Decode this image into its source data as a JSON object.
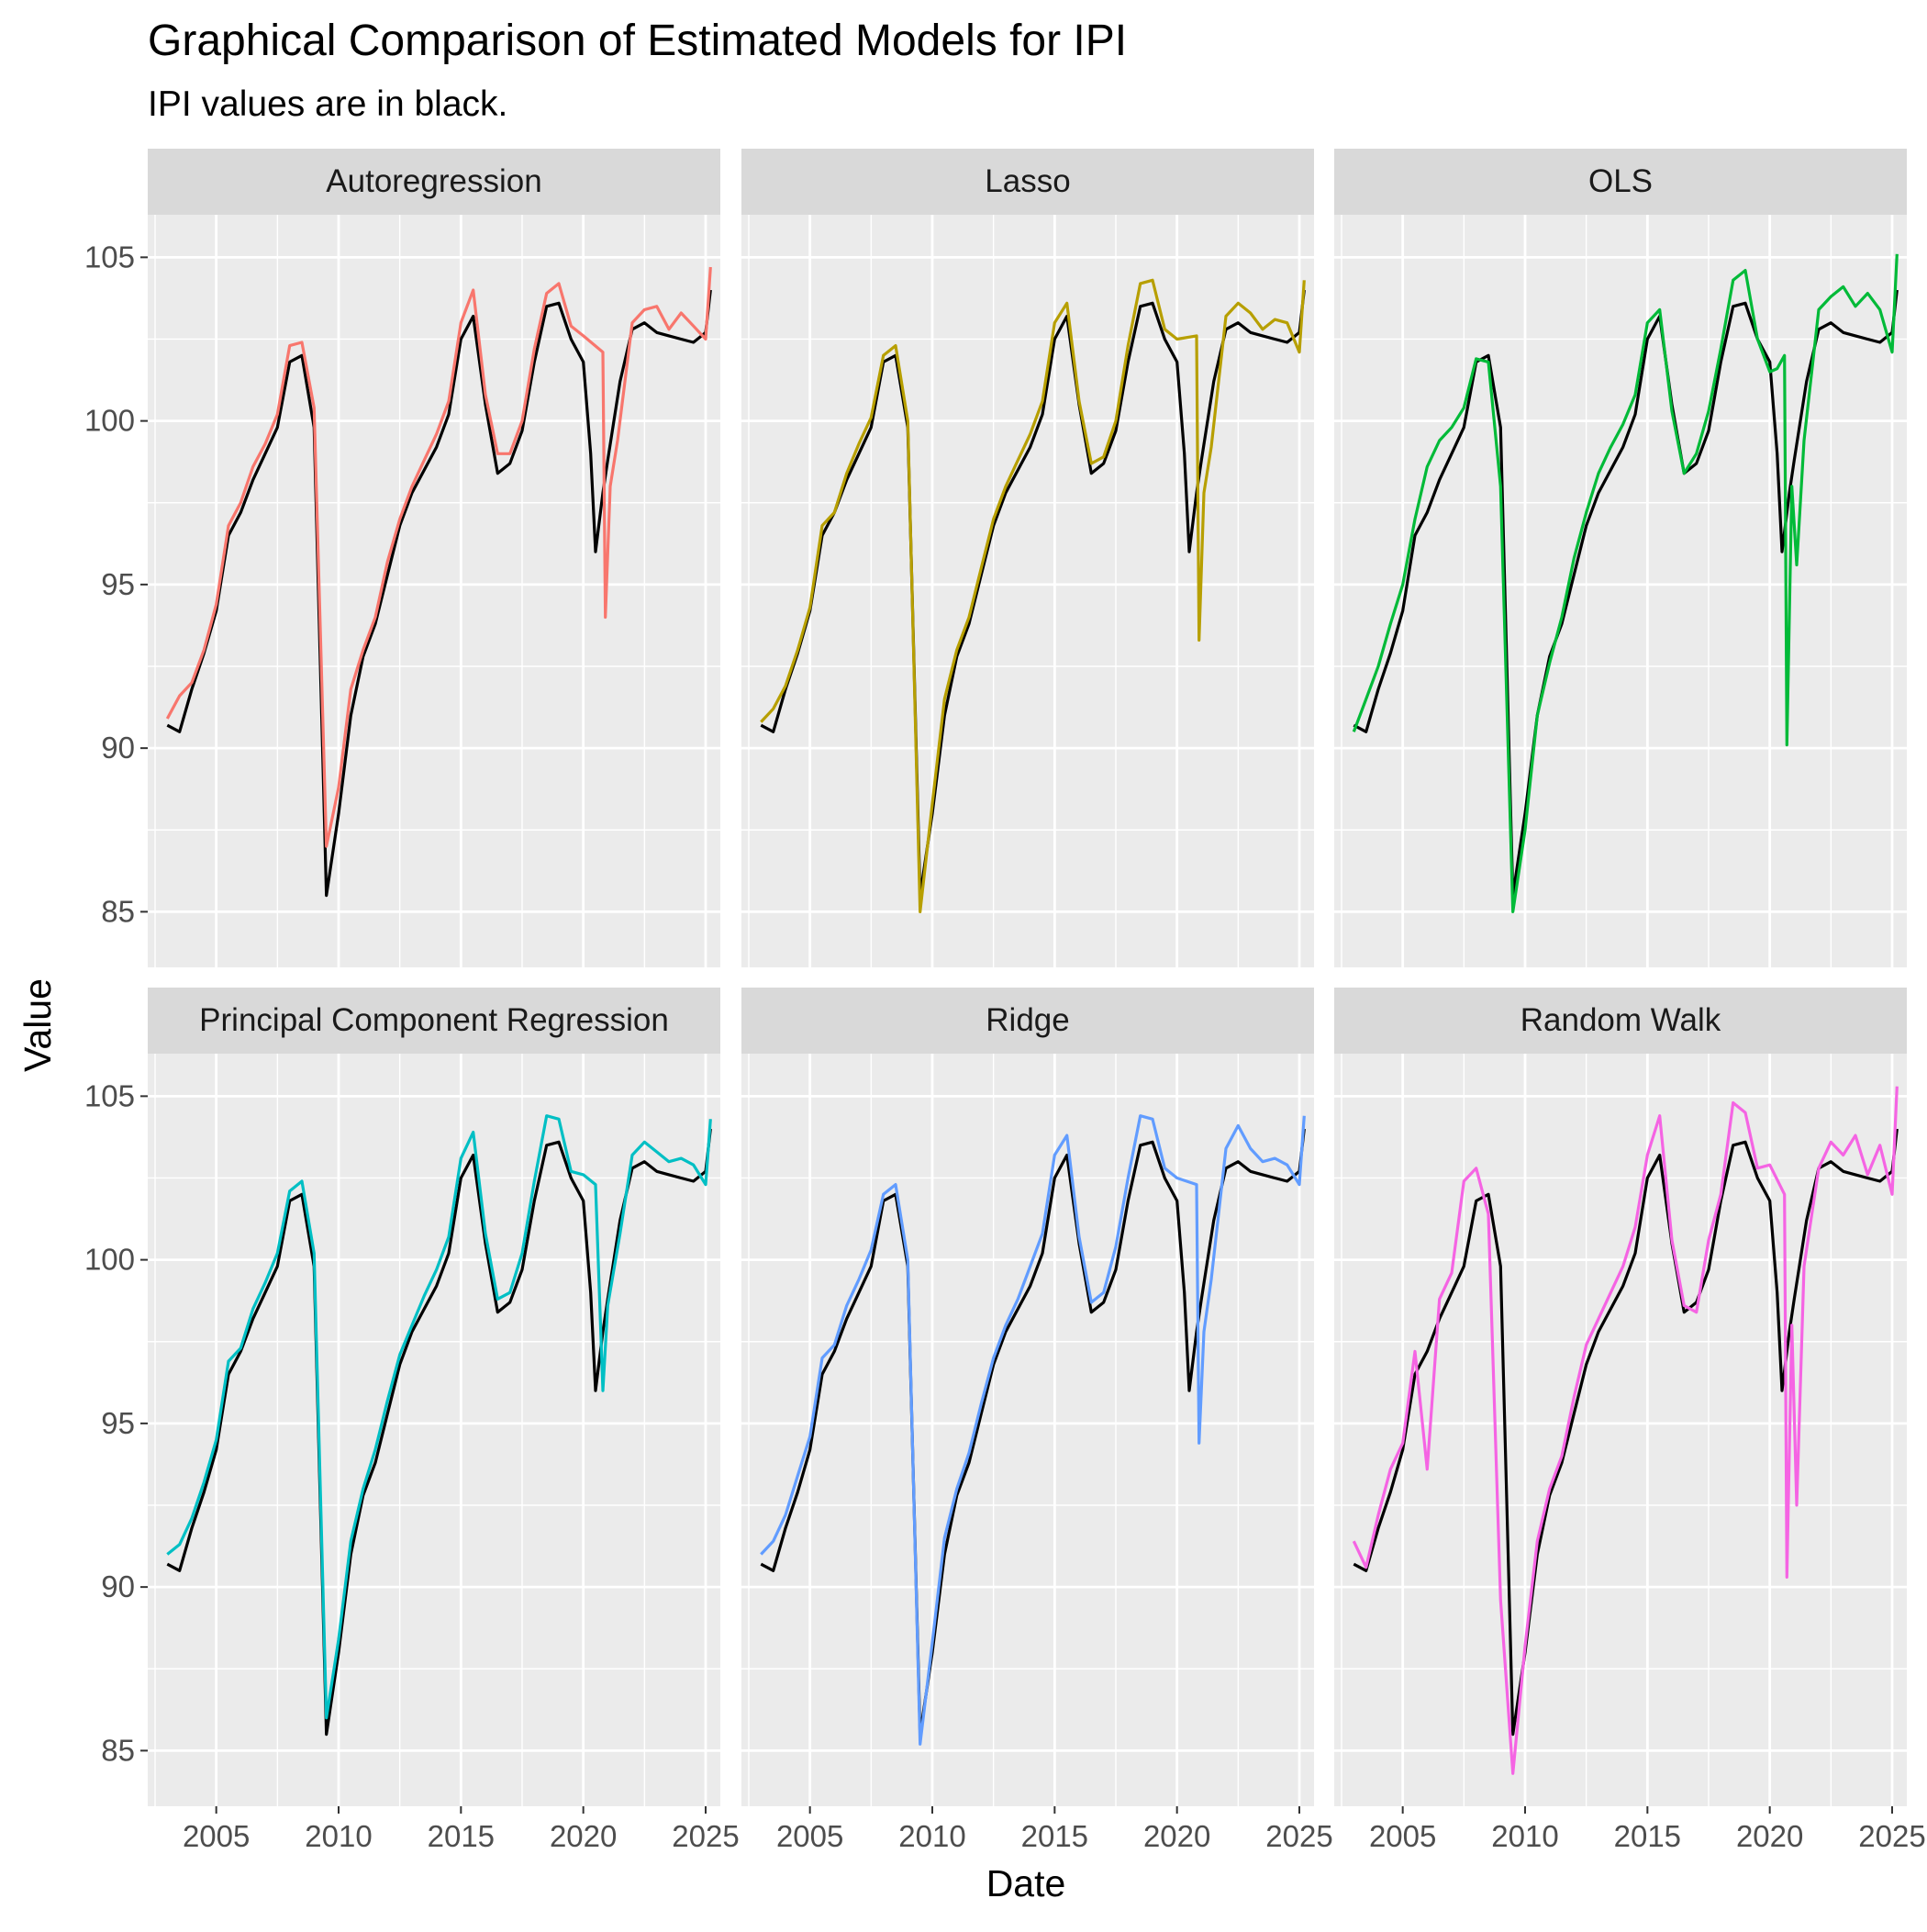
{
  "title": "Graphical Comparison of Estimated Models for IPI",
  "subtitle": "IPI values are in black.",
  "chart_data": {
    "type": "line",
    "title": "Graphical Comparison of Estimated Models for IPI",
    "subtitle": "IPI values are in black.",
    "xlabel": "Date",
    "ylabel": "Value",
    "xlim": [
      2002.2,
      2025.6
    ],
    "ylim": [
      83.3,
      106.3
    ],
    "x_ticks": [
      2005,
      2010,
      2015,
      2020,
      2025
    ],
    "x_tick_labels": [
      "2005",
      "2010",
      "2015",
      "2020",
      "2025"
    ],
    "y_ticks": [
      85,
      90,
      95,
      100,
      105
    ],
    "y_tick_labels": [
      "85",
      "90",
      "95",
      "100",
      "105"
    ],
    "grid": true,
    "legend": "none",
    "facet_layout": "2 rows x 3 columns",
    "actual_series": {
      "name": "IPI",
      "color": "#000000",
      "x": [
        2003.0,
        2003.5,
        2004.0,
        2004.5,
        2005.0,
        2005.5,
        2006.0,
        2006.5,
        2007.0,
        2007.5,
        2008.0,
        2008.5,
        2009.0,
        2009.5,
        2010.0,
        2010.5,
        2011.0,
        2011.5,
        2012.0,
        2012.5,
        2013.0,
        2013.5,
        2014.0,
        2014.5,
        2015.0,
        2015.5,
        2016.0,
        2016.5,
        2017.0,
        2017.5,
        2018.0,
        2018.5,
        2019.0,
        2019.5,
        2020.0,
        2020.3,
        2020.5,
        2020.8,
        2021.0,
        2021.5,
        2022.0,
        2022.5,
        2023.0,
        2023.5,
        2024.0,
        2024.5,
        2025.0,
        2025.2
      ],
      "y": [
        90.7,
        90.5,
        91.8,
        92.9,
        94.2,
        96.5,
        97.2,
        98.2,
        99.0,
        99.8,
        101.8,
        102.0,
        99.8,
        85.5,
        88.0,
        91.0,
        92.8,
        93.8,
        95.3,
        96.8,
        97.8,
        98.5,
        99.2,
        100.2,
        102.5,
        103.2,
        100.5,
        98.4,
        98.7,
        99.7,
        101.8,
        103.5,
        103.6,
        102.5,
        101.8,
        99.0,
        96.0,
        97.8,
        98.8,
        101.2,
        102.8,
        103.0,
        102.7,
        102.6,
        102.5,
        102.4,
        102.7,
        104.0
      ]
    },
    "series": [
      {
        "name": "Autoregression",
        "color": "#F8766D",
        "x": [
          2003.0,
          2003.5,
          2004.0,
          2004.5,
          2005.0,
          2005.5,
          2006.0,
          2006.5,
          2007.0,
          2007.5,
          2008.0,
          2008.5,
          2009.0,
          2009.5,
          2010.0,
          2010.5,
          2011.0,
          2011.5,
          2012.0,
          2012.5,
          2013.0,
          2013.5,
          2014.0,
          2014.5,
          2015.0,
          2015.5,
          2016.0,
          2016.5,
          2017.0,
          2017.5,
          2018.0,
          2018.5,
          2019.0,
          2019.5,
          2020.0,
          2020.8,
          2020.9,
          2021.1,
          2021.4,
          2022.0,
          2022.5,
          2023.0,
          2023.5,
          2024.0,
          2024.5,
          2025.0,
          2025.2
        ],
        "y": [
          90.9,
          91.6,
          92.0,
          93.0,
          94.4,
          96.8,
          97.5,
          98.6,
          99.3,
          100.2,
          102.3,
          102.4,
          100.4,
          87.0,
          88.8,
          91.8,
          93.0,
          94.0,
          95.7,
          97.0,
          98.0,
          98.8,
          99.6,
          100.6,
          103.0,
          104.0,
          100.8,
          99.0,
          99.0,
          100.0,
          102.2,
          103.9,
          104.2,
          102.9,
          102.6,
          102.1,
          94.0,
          98.0,
          99.4,
          103.0,
          103.4,
          103.5,
          102.8,
          103.3,
          102.9,
          102.5,
          104.7
        ]
      },
      {
        "name": "Lasso",
        "color": "#B79F00",
        "x": [
          2003.0,
          2003.5,
          2004.0,
          2004.5,
          2005.0,
          2005.5,
          2006.0,
          2006.5,
          2007.0,
          2007.5,
          2008.0,
          2008.5,
          2009.0,
          2009.5,
          2010.0,
          2010.5,
          2011.0,
          2011.5,
          2012.0,
          2012.5,
          2013.0,
          2013.5,
          2014.0,
          2014.5,
          2015.0,
          2015.5,
          2016.0,
          2016.5,
          2017.0,
          2017.5,
          2018.0,
          2018.5,
          2019.0,
          2019.5,
          2020.0,
          2020.8,
          2020.9,
          2021.1,
          2021.4,
          2022.0,
          2022.5,
          2023.0,
          2023.5,
          2024.0,
          2024.5,
          2025.0,
          2025.2
        ],
        "y": [
          90.8,
          91.2,
          91.9,
          93.0,
          94.3,
          96.8,
          97.2,
          98.4,
          99.3,
          100.1,
          102.0,
          102.3,
          100.0,
          85.0,
          88.3,
          91.5,
          93.0,
          94.0,
          95.5,
          97.0,
          98.0,
          98.8,
          99.6,
          100.6,
          103.0,
          103.6,
          100.6,
          98.7,
          98.9,
          100.0,
          102.3,
          104.2,
          104.3,
          102.8,
          102.5,
          102.6,
          93.3,
          97.8,
          99.2,
          103.2,
          103.6,
          103.3,
          102.8,
          103.1,
          103.0,
          102.1,
          104.3
        ]
      },
      {
        "name": "OLS",
        "color": "#00BA38",
        "x": [
          2003.0,
          2003.5,
          2004.0,
          2004.5,
          2005.0,
          2005.5,
          2006.0,
          2006.5,
          2007.0,
          2007.5,
          2008.0,
          2008.5,
          2009.0,
          2009.5,
          2010.0,
          2010.5,
          2011.0,
          2011.5,
          2012.0,
          2012.5,
          2013.0,
          2013.5,
          2014.0,
          2014.5,
          2015.0,
          2015.5,
          2016.0,
          2016.5,
          2017.0,
          2017.5,
          2018.0,
          2018.5,
          2019.0,
          2019.5,
          2020.0,
          2020.3,
          2020.6,
          2020.7,
          2020.9,
          2021.1,
          2021.4,
          2022.0,
          2022.5,
          2023.0,
          2023.5,
          2024.0,
          2024.5,
          2025.0,
          2025.2
        ],
        "y": [
          90.5,
          91.5,
          92.5,
          93.8,
          95.0,
          97.0,
          98.6,
          99.4,
          99.8,
          100.4,
          101.9,
          101.8,
          98.0,
          85.0,
          87.5,
          91.0,
          92.6,
          94.0,
          95.8,
          97.2,
          98.4,
          99.2,
          99.9,
          100.8,
          103.0,
          103.4,
          100.3,
          98.4,
          99.0,
          100.3,
          102.2,
          104.3,
          104.6,
          102.5,
          101.5,
          101.6,
          102.0,
          90.1,
          98.0,
          95.6,
          99.4,
          103.4,
          103.8,
          104.1,
          103.5,
          103.9,
          103.4,
          102.1,
          105.1
        ]
      },
      {
        "name": "Principal Component Regression",
        "color": "#00BFC4",
        "x": [
          2003.0,
          2003.5,
          2004.0,
          2004.5,
          2005.0,
          2005.5,
          2006.0,
          2006.5,
          2007.0,
          2007.5,
          2008.0,
          2008.5,
          2009.0,
          2009.5,
          2010.0,
          2010.5,
          2011.0,
          2011.5,
          2012.0,
          2012.5,
          2013.0,
          2013.5,
          2014.0,
          2014.5,
          2015.0,
          2015.5,
          2016.0,
          2016.5,
          2017.0,
          2017.5,
          2018.0,
          2018.5,
          2019.0,
          2019.5,
          2020.0,
          2020.5,
          2020.8,
          2021.0,
          2021.5,
          2022.0,
          2022.5,
          2023.0,
          2023.5,
          2024.0,
          2024.5,
          2025.0,
          2025.2
        ],
        "y": [
          91.0,
          91.3,
          92.1,
          93.2,
          94.5,
          96.9,
          97.3,
          98.5,
          99.3,
          100.2,
          102.1,
          102.4,
          100.2,
          86.0,
          88.4,
          91.4,
          93.0,
          94.2,
          95.7,
          97.1,
          98.0,
          98.9,
          99.7,
          100.7,
          103.1,
          103.9,
          100.8,
          98.8,
          99.0,
          100.2,
          102.4,
          104.4,
          104.3,
          102.7,
          102.6,
          102.3,
          96.0,
          98.6,
          100.8,
          103.2,
          103.6,
          103.3,
          103.0,
          103.1,
          102.9,
          102.3,
          104.3
        ]
      },
      {
        "name": "Ridge",
        "color": "#619CFF",
        "x": [
          2003.0,
          2003.5,
          2004.0,
          2004.5,
          2005.0,
          2005.5,
          2006.0,
          2006.5,
          2007.0,
          2007.5,
          2008.0,
          2008.5,
          2009.0,
          2009.5,
          2010.0,
          2010.5,
          2011.0,
          2011.5,
          2012.0,
          2012.5,
          2013.0,
          2013.5,
          2014.0,
          2014.5,
          2015.0,
          2015.5,
          2016.0,
          2016.5,
          2017.0,
          2017.5,
          2018.0,
          2018.5,
          2019.0,
          2019.5,
          2020.0,
          2020.8,
          2020.9,
          2021.1,
          2021.4,
          2022.0,
          2022.5,
          2023.0,
          2023.5,
          2024.0,
          2024.5,
          2025.0,
          2025.2
        ],
        "y": [
          91.0,
          91.4,
          92.2,
          93.4,
          94.6,
          97.0,
          97.4,
          98.6,
          99.4,
          100.3,
          102.0,
          102.3,
          100.0,
          85.2,
          88.3,
          91.5,
          93.0,
          94.1,
          95.6,
          97.0,
          98.0,
          98.8,
          99.8,
          100.8,
          103.2,
          103.8,
          100.7,
          98.7,
          99.0,
          100.4,
          102.5,
          104.4,
          104.3,
          102.8,
          102.5,
          102.3,
          94.4,
          97.8,
          99.4,
          103.4,
          104.1,
          103.4,
          103.0,
          103.1,
          102.9,
          102.3,
          104.4
        ]
      },
      {
        "name": "Random Walk",
        "color": "#F564E3",
        "x": [
          2003.0,
          2003.5,
          2004.0,
          2004.5,
          2005.0,
          2005.5,
          2006.0,
          2006.5,
          2007.0,
          2007.5,
          2008.0,
          2008.5,
          2009.0,
          2009.5,
          2010.0,
          2010.5,
          2011.0,
          2011.5,
          2012.0,
          2012.5,
          2013.0,
          2013.5,
          2014.0,
          2014.5,
          2015.0,
          2015.5,
          2016.0,
          2016.5,
          2017.0,
          2017.5,
          2018.0,
          2018.5,
          2019.0,
          2019.5,
          2020.0,
          2020.6,
          2020.7,
          2020.9,
          2021.1,
          2021.4,
          2022.0,
          2022.5,
          2023.0,
          2023.5,
          2024.0,
          2024.5,
          2025.0,
          2025.2
        ],
        "y": [
          91.4,
          90.6,
          92.2,
          93.6,
          94.4,
          97.2,
          93.6,
          98.8,
          99.6,
          102.4,
          102.8,
          101.4,
          89.6,
          84.3,
          88.2,
          91.4,
          93.0,
          94.0,
          95.8,
          97.4,
          98.2,
          99.0,
          99.8,
          101.0,
          103.2,
          104.4,
          100.6,
          98.6,
          98.4,
          100.6,
          102.0,
          104.8,
          104.5,
          102.8,
          102.9,
          102.0,
          90.3,
          98.0,
          92.5,
          99.8,
          102.8,
          103.6,
          103.2,
          103.8,
          102.6,
          103.5,
          102.0,
          105.3
        ]
      }
    ]
  }
}
